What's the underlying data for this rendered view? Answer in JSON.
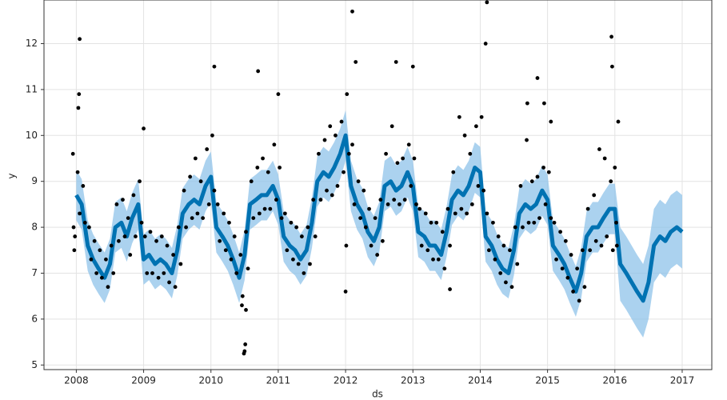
{
  "chart_data": {
    "type": "forecast",
    "xlabel": "ds",
    "ylabel": "y",
    "xlim": [
      2007.52,
      2017.44
    ],
    "ylim": [
      4.9,
      12.95
    ],
    "xticks": [
      2008,
      2009,
      2010,
      2011,
      2012,
      2013,
      2014,
      2015,
      2016,
      2017
    ],
    "yticks": [
      5,
      6,
      7,
      8,
      9,
      10,
      11,
      12
    ],
    "grid": true,
    "forecast": {
      "color": "#0072b2",
      "band_color": "#8fc3ea",
      "x": [
        2008.0,
        2008.08,
        2008.17,
        2008.25,
        2008.33,
        2008.42,
        2008.5,
        2008.58,
        2008.67,
        2008.75,
        2008.83,
        2008.92,
        2009.0,
        2009.08,
        2009.17,
        2009.25,
        2009.33,
        2009.42,
        2009.5,
        2009.58,
        2009.67,
        2009.75,
        2009.83,
        2009.92,
        2010.0,
        2010.08,
        2010.17,
        2010.25,
        2010.33,
        2010.42,
        2010.5,
        2010.58,
        2010.67,
        2010.75,
        2010.83,
        2010.92,
        2011.0,
        2011.08,
        2011.17,
        2011.25,
        2011.33,
        2011.42,
        2011.5,
        2011.58,
        2011.67,
        2011.75,
        2011.83,
        2011.92,
        2012.0,
        2012.08,
        2012.17,
        2012.25,
        2012.33,
        2012.42,
        2012.5,
        2012.58,
        2012.67,
        2012.75,
        2012.83,
        2012.92,
        2013.0,
        2013.08,
        2013.17,
        2013.25,
        2013.33,
        2013.42,
        2013.5,
        2013.58,
        2013.67,
        2013.75,
        2013.83,
        2013.92,
        2014.0,
        2014.08,
        2014.17,
        2014.25,
        2014.33,
        2014.42,
        2014.5,
        2014.58,
        2014.67,
        2014.75,
        2014.83,
        2014.92,
        2015.0,
        2015.08,
        2015.17,
        2015.25,
        2015.33,
        2015.42,
        2015.5,
        2015.58,
        2015.67,
        2015.75,
        2015.83,
        2015.92,
        2016.0,
        2016.08,
        2016.17,
        2016.25,
        2016.33,
        2016.42,
        2016.5,
        2016.58,
        2016.67,
        2016.75,
        2016.83,
        2016.92,
        2017.0
      ],
      "values": [
        8.7,
        8.5,
        7.6,
        7.3,
        7.1,
        6.9,
        7.2,
        8.0,
        8.1,
        7.8,
        8.2,
        8.5,
        7.3,
        7.4,
        7.2,
        7.3,
        7.2,
        7.0,
        7.5,
        8.3,
        8.5,
        8.6,
        8.5,
        8.9,
        9.1,
        8.0,
        7.8,
        7.6,
        7.3,
        6.9,
        7.4,
        8.5,
        8.6,
        8.7,
        8.7,
        8.9,
        8.6,
        7.8,
        7.6,
        7.5,
        7.3,
        7.5,
        8.1,
        9.0,
        9.2,
        9.1,
        9.3,
        9.6,
        10.0,
        8.9,
        8.5,
        8.3,
        7.9,
        7.7,
        8.0,
        8.9,
        9.0,
        8.8,
        8.9,
        9.2,
        8.9,
        7.9,
        7.8,
        7.6,
        7.6,
        7.4,
        7.9,
        8.6,
        8.8,
        8.7,
        8.9,
        9.3,
        9.2,
        7.8,
        7.6,
        7.3,
        7.1,
        7.0,
        7.5,
        8.3,
        8.5,
        8.4,
        8.5,
        8.8,
        8.6,
        7.6,
        7.4,
        7.2,
        6.9,
        6.6,
        7.0,
        7.8,
        8.0,
        8.0,
        8.2,
        8.4,
        8.4,
        7.2,
        7.0,
        6.8,
        6.6,
        6.4,
        6.8,
        7.6,
        7.8,
        7.7,
        7.9,
        8.0,
        7.9
      ],
      "lower": [
        8.15,
        7.95,
        7.05,
        6.75,
        6.55,
        6.35,
        6.65,
        7.45,
        7.55,
        7.25,
        7.65,
        7.95,
        6.75,
        6.85,
        6.65,
        6.75,
        6.65,
        6.45,
        6.95,
        7.75,
        7.95,
        8.05,
        7.95,
        8.35,
        8.55,
        7.45,
        7.25,
        7.05,
        6.75,
        6.35,
        6.85,
        7.95,
        8.05,
        8.15,
        8.15,
        8.35,
        8.05,
        7.25,
        7.05,
        6.95,
        6.75,
        6.95,
        7.55,
        8.45,
        8.65,
        8.55,
        8.75,
        9.05,
        9.45,
        8.35,
        7.95,
        7.75,
        7.35,
        7.15,
        7.45,
        8.35,
        8.45,
        8.25,
        8.35,
        8.65,
        8.35,
        7.35,
        7.25,
        7.05,
        7.05,
        6.85,
        7.35,
        8.05,
        8.25,
        8.15,
        8.35,
        8.75,
        8.65,
        7.25,
        7.05,
        6.75,
        6.55,
        6.45,
        6.95,
        7.75,
        7.95,
        7.85,
        7.95,
        8.25,
        8.05,
        7.05,
        6.85,
        6.65,
        6.35,
        6.05,
        6.45,
        7.25,
        7.45,
        7.45,
        7.65,
        7.85,
        7.85,
        6.4,
        6.2,
        6.0,
        5.8,
        5.6,
        6.0,
        6.8,
        7.0,
        6.9,
        7.1,
        7.2,
        7.1
      ],
      "upper": [
        9.25,
        9.05,
        8.15,
        7.85,
        7.65,
        7.45,
        7.75,
        8.55,
        8.65,
        8.35,
        8.75,
        9.05,
        7.85,
        7.95,
        7.75,
        7.85,
        7.75,
        7.55,
        8.05,
        8.85,
        9.05,
        9.15,
        9.05,
        9.45,
        9.65,
        8.55,
        8.35,
        8.15,
        7.85,
        7.45,
        7.95,
        9.05,
        9.15,
        9.25,
        9.25,
        9.45,
        9.15,
        8.35,
        8.15,
        8.05,
        7.85,
        8.05,
        8.65,
        9.55,
        9.75,
        9.65,
        9.85,
        10.15,
        10.55,
        9.45,
        9.05,
        8.85,
        8.45,
        8.25,
        8.55,
        9.45,
        9.55,
        9.35,
        9.45,
        9.75,
        9.45,
        8.45,
        8.35,
        8.15,
        8.15,
        7.95,
        8.45,
        9.15,
        9.35,
        9.25,
        9.45,
        9.85,
        9.75,
        8.35,
        8.15,
        7.85,
        7.65,
        7.55,
        8.05,
        8.85,
        9.05,
        8.95,
        9.05,
        9.35,
        9.15,
        8.15,
        7.95,
        7.75,
        7.45,
        7.15,
        7.55,
        8.35,
        8.55,
        8.55,
        8.75,
        8.95,
        8.95,
        8.0,
        7.8,
        7.6,
        7.4,
        7.2,
        7.6,
        8.4,
        8.6,
        8.5,
        8.7,
        8.8,
        8.7
      ]
    },
    "points": {
      "color": "#000000",
      "x": [
        2007.95,
        2007.96,
        2007.97,
        2007.98,
        2008.02,
        2008.05,
        2008.1,
        2008.13,
        2008.19,
        2008.22,
        2008.27,
        2008.3,
        2008.35,
        2008.38,
        2008.44,
        2008.47,
        2008.52,
        2008.55,
        2008.6,
        2008.63,
        2008.69,
        2008.72,
        2008.77,
        2008.8,
        2008.85,
        2008.88,
        2008.94,
        2008.97,
        2009.02,
        2009.05,
        2009.1,
        2009.13,
        2009.19,
        2009.22,
        2009.27,
        2009.3,
        2009.35,
        2009.38,
        2009.44,
        2009.47,
        2009.52,
        2009.55,
        2009.6,
        2009.63,
        2009.69,
        2009.72,
        2009.77,
        2009.8,
        2009.85,
        2009.88,
        2009.94,
        2009.97,
        2010.02,
        2010.05,
        2010.1,
        2010.13,
        2010.19,
        2010.22,
        2010.27,
        2010.3,
        2010.35,
        2010.38,
        2010.44,
        2010.47,
        2010.52,
        2010.55,
        2010.6,
        2010.63,
        2010.69,
        2010.72,
        2010.77,
        2010.8,
        2010.85,
        2010.88,
        2010.94,
        2010.97,
        2011.02,
        2011.05,
        2011.1,
        2011.13,
        2011.19,
        2011.22,
        2011.27,
        2011.3,
        2011.35,
        2011.38,
        2011.44,
        2011.47,
        2011.52,
        2011.55,
        2011.6,
        2011.63,
        2011.69,
        2011.72,
        2011.77,
        2011.8,
        2011.85,
        2011.88,
        2011.94,
        2011.97,
        2012.02,
        2012.05,
        2012.1,
        2012.13,
        2012.19,
        2012.22,
        2012.27,
        2012.3,
        2012.35,
        2012.38,
        2012.44,
        2012.47,
        2012.52,
        2012.55,
        2012.6,
        2012.63,
        2012.69,
        2012.72,
        2012.77,
        2012.8,
        2012.85,
        2012.88,
        2012.94,
        2012.97,
        2013.02,
        2013.05,
        2013.1,
        2013.13,
        2013.19,
        2013.22,
        2013.27,
        2013.3,
        2013.35,
        2013.38,
        2013.44,
        2013.47,
        2013.52,
        2013.55,
        2013.6,
        2013.63,
        2013.69,
        2013.72,
        2013.77,
        2013.8,
        2013.85,
        2013.88,
        2013.94,
        2013.97,
        2014.02,
        2014.05,
        2014.1,
        2014.13,
        2014.19,
        2014.22,
        2014.27,
        2014.3,
        2014.35,
        2014.38,
        2014.44,
        2014.47,
        2014.52,
        2014.55,
        2014.6,
        2014.63,
        2014.69,
        2014.72,
        2014.77,
        2014.8,
        2014.85,
        2014.88,
        2014.94,
        2014.97,
        2015.02,
        2015.05,
        2015.1,
        2015.13,
        2015.19,
        2015.22,
        2015.27,
        2015.3,
        2015.35,
        2015.38,
        2015.44,
        2015.47,
        2015.52,
        2015.55,
        2015.6,
        2015.63,
        2015.69,
        2015.72,
        2015.77,
        2015.8,
        2015.85,
        2015.88,
        2015.94,
        2015.97,
        2016.0,
        2016.02,
        2016.03,
        2008.05,
        2008.04,
        2008.03,
        2009.0,
        2010.05,
        2010.7,
        2011.0,
        2012.1,
        2012.15,
        2012.75,
        2013.0,
        2014.1,
        2014.08,
        2015.95,
        2015.96,
        2016.05,
        2010.5,
        2010.51,
        2010.49,
        2010.52,
        2010.46,
        2012.0,
        2012.01,
        2013.55,
        2014.95,
        2015.05,
        2014.85,
        2014.7
      ],
      "values": [
        9.6,
        8.0,
        7.5,
        7.8,
        9.2,
        8.3,
        8.9,
        8.1,
        8.0,
        7.3,
        7.7,
        7.0,
        7.5,
        6.9,
        7.3,
        6.7,
        7.6,
        7.0,
        8.5,
        7.7,
        8.6,
        7.8,
        8.2,
        7.4,
        8.7,
        7.8,
        9.0,
        8.1,
        7.8,
        7.0,
        7.9,
        7.0,
        7.7,
        6.9,
        7.8,
        7.0,
        7.6,
        6.8,
        7.4,
        6.7,
        8.0,
        7.2,
        8.8,
        8.0,
        9.1,
        8.2,
        9.5,
        8.3,
        9.0,
        8.2,
        9.7,
        8.5,
        10.0,
        8.8,
        8.5,
        7.7,
        8.3,
        7.5,
        8.1,
        7.3,
        7.8,
        7.0,
        7.4,
        6.5,
        7.9,
        7.1,
        9.0,
        8.2,
        9.3,
        8.3,
        9.5,
        8.4,
        9.2,
        8.4,
        9.8,
        8.6,
        9.3,
        8.2,
        8.3,
        7.5,
        8.1,
        7.3,
        8.0,
        7.2,
        7.8,
        7.0,
        8.0,
        7.2,
        8.6,
        7.8,
        9.6,
        8.6,
        9.9,
        8.8,
        10.2,
        8.7,
        10.0,
        8.9,
        10.3,
        9.2,
        10.9,
        9.6,
        9.8,
        8.5,
        9.0,
        8.2,
        8.8,
        8.0,
        8.4,
        7.6,
        8.2,
        7.4,
        8.6,
        7.7,
        9.6,
        8.5,
        10.2,
        8.6,
        9.4,
        8.5,
        9.5,
        8.6,
        9.8,
        8.9,
        9.5,
        8.5,
        8.4,
        7.6,
        8.3,
        7.5,
        8.1,
        7.3,
        8.1,
        7.3,
        7.9,
        7.1,
        8.4,
        7.6,
        9.2,
        8.3,
        10.4,
        8.4,
        10.0,
        8.3,
        9.6,
        8.5,
        10.2,
        8.9,
        10.4,
        8.8,
        8.3,
        7.5,
        8.1,
        7.3,
        7.8,
        7.0,
        7.6,
        6.8,
        7.5,
        6.7,
        8.0,
        7.2,
        8.9,
        8.0,
        9.9,
        8.1,
        9.0,
        8.1,
        9.1,
        8.2,
        9.3,
        8.5,
        9.2,
        8.2,
        8.1,
        7.3,
        7.9,
        7.1,
        7.7,
        6.9,
        7.4,
        6.6,
        7.1,
        6.4,
        7.5,
        6.7,
        8.4,
        7.5,
        8.7,
        7.7,
        9.7,
        7.6,
        9.5,
        7.8,
        9.0,
        7.5,
        9.3,
        8.1,
        7.6,
        12.1,
        10.9,
        10.6,
        10.15,
        11.5,
        11.4,
        10.9,
        12.7,
        11.6,
        11.6,
        11.5,
        12.9,
        12.0,
        12.15,
        11.5,
        10.3,
        5.3,
        5.45,
        5.25,
        6.2,
        6.3,
        6.6,
        7.6,
        6.65,
        10.7,
        10.3,
        11.25,
        10.7
      ]
    }
  }
}
